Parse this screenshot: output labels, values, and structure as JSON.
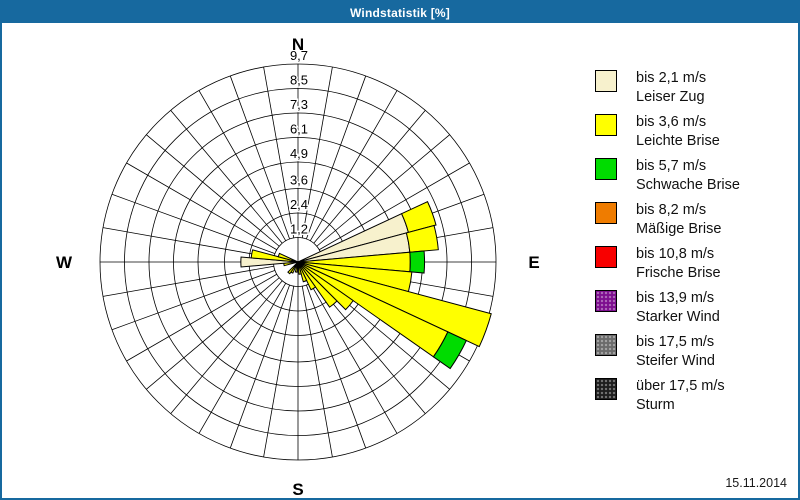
{
  "header": {
    "title": "Windstatistik [%]"
  },
  "footer": {
    "date": "15.11.2014"
  },
  "legend": {
    "items": [
      {
        "speed": "bis 2,1 m/s",
        "name": "Leiser Zug",
        "color": "#F7F1CD",
        "pattern": false
      },
      {
        "speed": "bis 3,6 m/s",
        "name": "Leichte Brise",
        "color": "#FFFF00",
        "pattern": false
      },
      {
        "speed": "bis 5,7 m/s",
        "name": "Schwache Brise",
        "color": "#00DC00",
        "pattern": false
      },
      {
        "speed": "bis 8,2 m/s",
        "name": "Mäßige Brise",
        "color": "#EF7C00",
        "pattern": false
      },
      {
        "speed": "bis 10,8 m/s",
        "name": "Frische Brise",
        "color": "#F80000",
        "pattern": false
      },
      {
        "speed": "bis 13,9 m/s",
        "name": "Starker Wind",
        "color": "#7D0E8F",
        "pattern": true
      },
      {
        "speed": "bis 17,5 m/s",
        "name": "Steifer Wind",
        "color": "#6B6B6B",
        "pattern": true
      },
      {
        "speed": "über 17,5 m/s",
        "name": "Sturm",
        "color": "#1E1E1E",
        "pattern": true
      }
    ]
  },
  "chart_data": {
    "type": "wind_rose",
    "title": "Windstatistik [%]",
    "unit": "%",
    "sector_width_deg": 10,
    "grid": {
      "spoke_step_deg": 10,
      "rings": 8
    },
    "max_value": 9.7,
    "ring_values": [
      1.2,
      2.4,
      3.6,
      4.9,
      6.1,
      7.3,
      8.5,
      9.7
    ],
    "ring_labels": [
      "1,2",
      "2,4",
      "3,6",
      "4,9",
      "6,1",
      "7,3",
      "8,5",
      "9,7"
    ],
    "compass": {
      "n": "N",
      "e": "E",
      "s": "S",
      "w": "W"
    },
    "categories": {
      "leiser_zug": {
        "label": "bis 2,1 m/s Leiser Zug",
        "color": "#F7F1CD"
      },
      "leichte_brise": {
        "label": "bis 3,6 m/s Leichte Brise",
        "color": "#FFFF00"
      },
      "schwache_brise": {
        "label": "bis 5,7 m/s Schwache Brise",
        "color": "#00DC00"
      }
    },
    "petals": [
      {
        "direction_deg": 70,
        "segments": [
          {
            "category": "leiser_zug",
            "from": 0,
            "to": 5.6
          },
          {
            "category": "leichte_brise",
            "from": 5.6,
            "to": 7.0
          }
        ]
      },
      {
        "direction_deg": 80,
        "segments": [
          {
            "category": "leiser_zug",
            "from": 0,
            "to": 5.5
          },
          {
            "category": "leichte_brise",
            "from": 5.5,
            "to": 6.9
          }
        ]
      },
      {
        "direction_deg": 90,
        "segments": [
          {
            "category": "leichte_brise",
            "from": 0,
            "to": 5.5
          },
          {
            "category": "schwache_brise",
            "from": 5.5,
            "to": 6.2
          }
        ]
      },
      {
        "direction_deg": 100,
        "segments": [
          {
            "category": "leichte_brise",
            "from": 0,
            "to": 5.6
          }
        ]
      },
      {
        "direction_deg": 110,
        "segments": [
          {
            "category": "leichte_brise",
            "from": 0,
            "to": 9.8
          }
        ]
      },
      {
        "direction_deg": 120,
        "segments": [
          {
            "category": "leichte_brise",
            "from": 0,
            "to": 8.1
          },
          {
            "category": "schwache_brise",
            "from": 8.1,
            "to": 9.1
          }
        ]
      },
      {
        "direction_deg": 130,
        "segments": [
          {
            "category": "leichte_brise",
            "from": 0,
            "to": 3.3
          }
        ]
      },
      {
        "direction_deg": 140,
        "segments": [
          {
            "category": "leichte_brise",
            "from": 0,
            "to": 2.7
          }
        ]
      },
      {
        "direction_deg": 150,
        "segments": [
          {
            "category": "leichte_brise",
            "from": 0,
            "to": 1.5
          }
        ]
      },
      {
        "direction_deg": 160,
        "segments": [
          {
            "category": "leichte_brise",
            "from": 0,
            "to": 1.0
          }
        ]
      },
      {
        "direction_deg": 170,
        "segments": [
          {
            "category": "leichte_brise",
            "from": 0,
            "to": 0.6
          }
        ]
      },
      {
        "direction_deg": 190,
        "segments": [
          {
            "category": "leichte_brise",
            "from": 0,
            "to": 0.5
          }
        ]
      },
      {
        "direction_deg": 210,
        "segments": [
          {
            "category": "leichte_brise",
            "from": 0,
            "to": 0.6
          }
        ]
      },
      {
        "direction_deg": 220,
        "segments": [
          {
            "category": "leichte_brise",
            "from": 0,
            "to": 0.7
          }
        ]
      },
      {
        "direction_deg": 260,
        "segments": [
          {
            "category": "leichte_brise",
            "from": 0,
            "to": 0.7
          }
        ]
      },
      {
        "direction_deg": 270,
        "segments": [
          {
            "category": "leiser_zug",
            "from": 0,
            "to": 2.8
          }
        ]
      },
      {
        "direction_deg": 280,
        "segments": [
          {
            "category": "leichte_brise",
            "from": 0,
            "to": 2.3
          }
        ]
      },
      {
        "direction_deg": 290,
        "segments": [
          {
            "category": "leichte_brise",
            "from": 0,
            "to": 1.0
          }
        ]
      }
    ]
  }
}
